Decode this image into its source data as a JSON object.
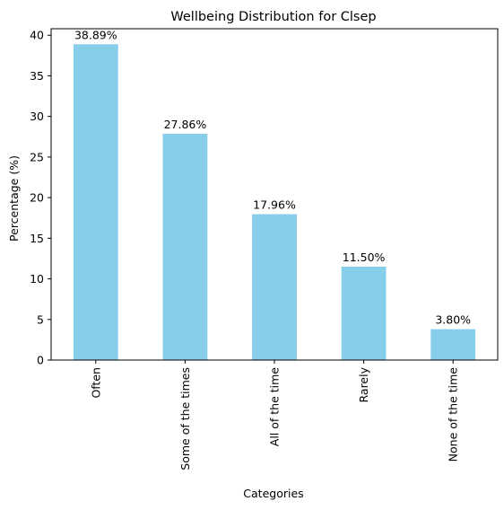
{
  "chart_data": {
    "type": "bar",
    "title": "Wellbeing Distribution for Clsep",
    "xlabel": "Categories",
    "ylabel": "Percentage (%)",
    "categories": [
      "Often",
      "Some of the times",
      "All of the time",
      "Rarely",
      "None of the time"
    ],
    "values": [
      38.89,
      27.86,
      17.96,
      11.5,
      3.8
    ],
    "data_labels": [
      "38.89%",
      "27.86%",
      "17.96%",
      "11.50%",
      "3.80%"
    ],
    "ylim": [
      0,
      40.8
    ],
    "yticks": [
      0,
      5,
      10,
      15,
      20,
      25,
      30,
      35,
      40
    ],
    "grid": false,
    "legend": "none",
    "bar_color": "#87ceeb",
    "x_tick_rotation": "vertical"
  }
}
